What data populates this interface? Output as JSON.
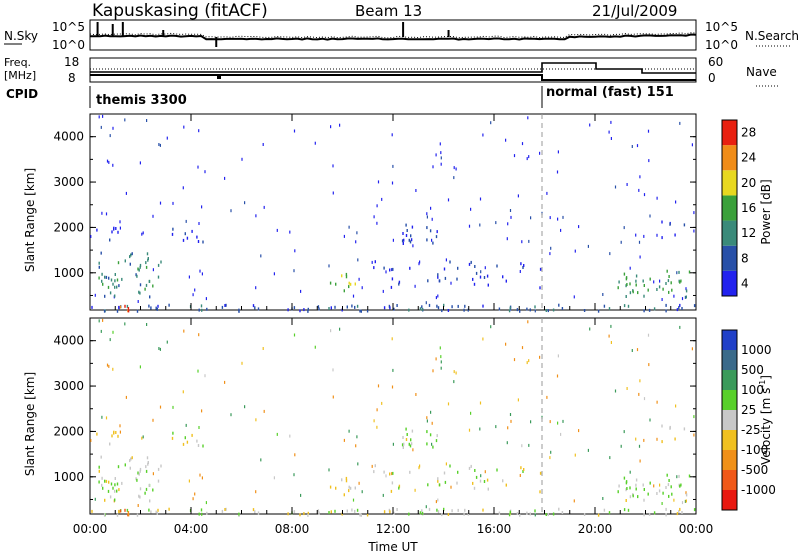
{
  "header": {
    "station": "Kapuskasing (fitACF)",
    "beam": "Beam 13",
    "date": "21/Jul/2009"
  },
  "noise_panel": {
    "left_label": "N.Sky",
    "right_label": "N.Search",
    "left_ticks": [
      "10^5",
      "10^0"
    ],
    "right_ticks": [
      "10^5",
      "10^0"
    ]
  },
  "freq_panel": {
    "left_label_top": "Freq.",
    "left_label_bottom": "[MHz]",
    "right_label": "Nave",
    "left_ticks": [
      "18",
      "8"
    ],
    "right_ticks": [
      "60",
      "0"
    ]
  },
  "cpid": {
    "label": "CPID",
    "segments": [
      {
        "name": "themis 3300",
        "start_hour": 0,
        "end_hour": 18
      },
      {
        "name": "normal (fast) 151",
        "start_hour": 18,
        "end_hour": 24
      }
    ]
  },
  "axes": {
    "ylabel": "Slant Range [km]",
    "xlabel": "Time UT",
    "x_ticks": [
      "00:00",
      "04:00",
      "08:00",
      "12:00",
      "16:00",
      "20:00",
      "00:00"
    ],
    "y_ticks": [
      "1000",
      "2000",
      "3000",
      "4000"
    ]
  },
  "power_colorbar": {
    "title": "Power [dB]",
    "labels": [
      "4",
      "8",
      "12",
      "16",
      "20",
      "24",
      "28"
    ],
    "colors": [
      "#2222ee",
      "#2850a8",
      "#3a8a7a",
      "#3aa03a",
      "#e8d820",
      "#f08c18",
      "#e82010"
    ]
  },
  "velocity_colorbar": {
    "title": "Velocity [m s",
    "title_sup": "-1",
    "title_close": "]",
    "labels": [
      "1000",
      "500",
      "100",
      "25",
      "-25",
      "-100",
      "-500",
      "-1000"
    ],
    "colors": [
      "#2040c8",
      "#3a6a8a",
      "#3a9a5a",
      "#58d02a",
      "#c8c8c8",
      "#f0c020",
      "#f09018",
      "#f05818",
      "#e81810"
    ]
  },
  "chart_data": {
    "type": "heatmap",
    "x_range_hours": [
      0,
      24
    ],
    "y_range_km": [
      180,
      4500
    ],
    "data_gap_start_hour": 18,
    "echo_regions": [
      {
        "t_start": 0.3,
        "t_end": 2.8,
        "r_start": 500,
        "r_end": 1500,
        "density": 0.35,
        "power_db": 12,
        "velocity": 25
      },
      {
        "t_start": 0.2,
        "t_end": 1.2,
        "r_start": 1700,
        "r_end": 2100,
        "density": 0.3,
        "power_db": 6,
        "velocity": -25
      },
      {
        "t_start": 3.0,
        "t_end": 4.5,
        "r_start": 1700,
        "r_end": 2100,
        "density": 0.25,
        "power_db": 5,
        "velocity": 0
      },
      {
        "t_start": 9.5,
        "t_end": 10.6,
        "r_start": 600,
        "r_end": 1100,
        "density": 0.3,
        "power_db": 18,
        "velocity": -25
      },
      {
        "t_start": 12.3,
        "t_end": 13.8,
        "r_start": 1600,
        "r_end": 2100,
        "density": 0.4,
        "power_db": 6,
        "velocity": 25
      },
      {
        "t_start": 11.0,
        "t_end": 18.0,
        "r_start": 700,
        "r_end": 1300,
        "density": 0.15,
        "power_db": 5,
        "velocity": 0
      },
      {
        "t_start": 20.8,
        "t_end": 23.8,
        "r_start": 500,
        "r_end": 1100,
        "density": 0.35,
        "power_db": 14,
        "velocity": 25
      },
      {
        "t_start": 22.5,
        "t_end": 23.8,
        "r_start": 1800,
        "r_end": 2200,
        "density": 0.2,
        "power_db": 5,
        "velocity": -25
      },
      {
        "t_start": 0,
        "t_end": 24,
        "r_start": 180,
        "r_end": 320,
        "density": 0.5,
        "power_db": 8,
        "velocity": 0
      },
      {
        "t_start": 0.9,
        "t_end": 1.5,
        "r_start": 180,
        "r_end": 320,
        "density": 0.9,
        "power_db": 28,
        "velocity": -500
      }
    ]
  }
}
